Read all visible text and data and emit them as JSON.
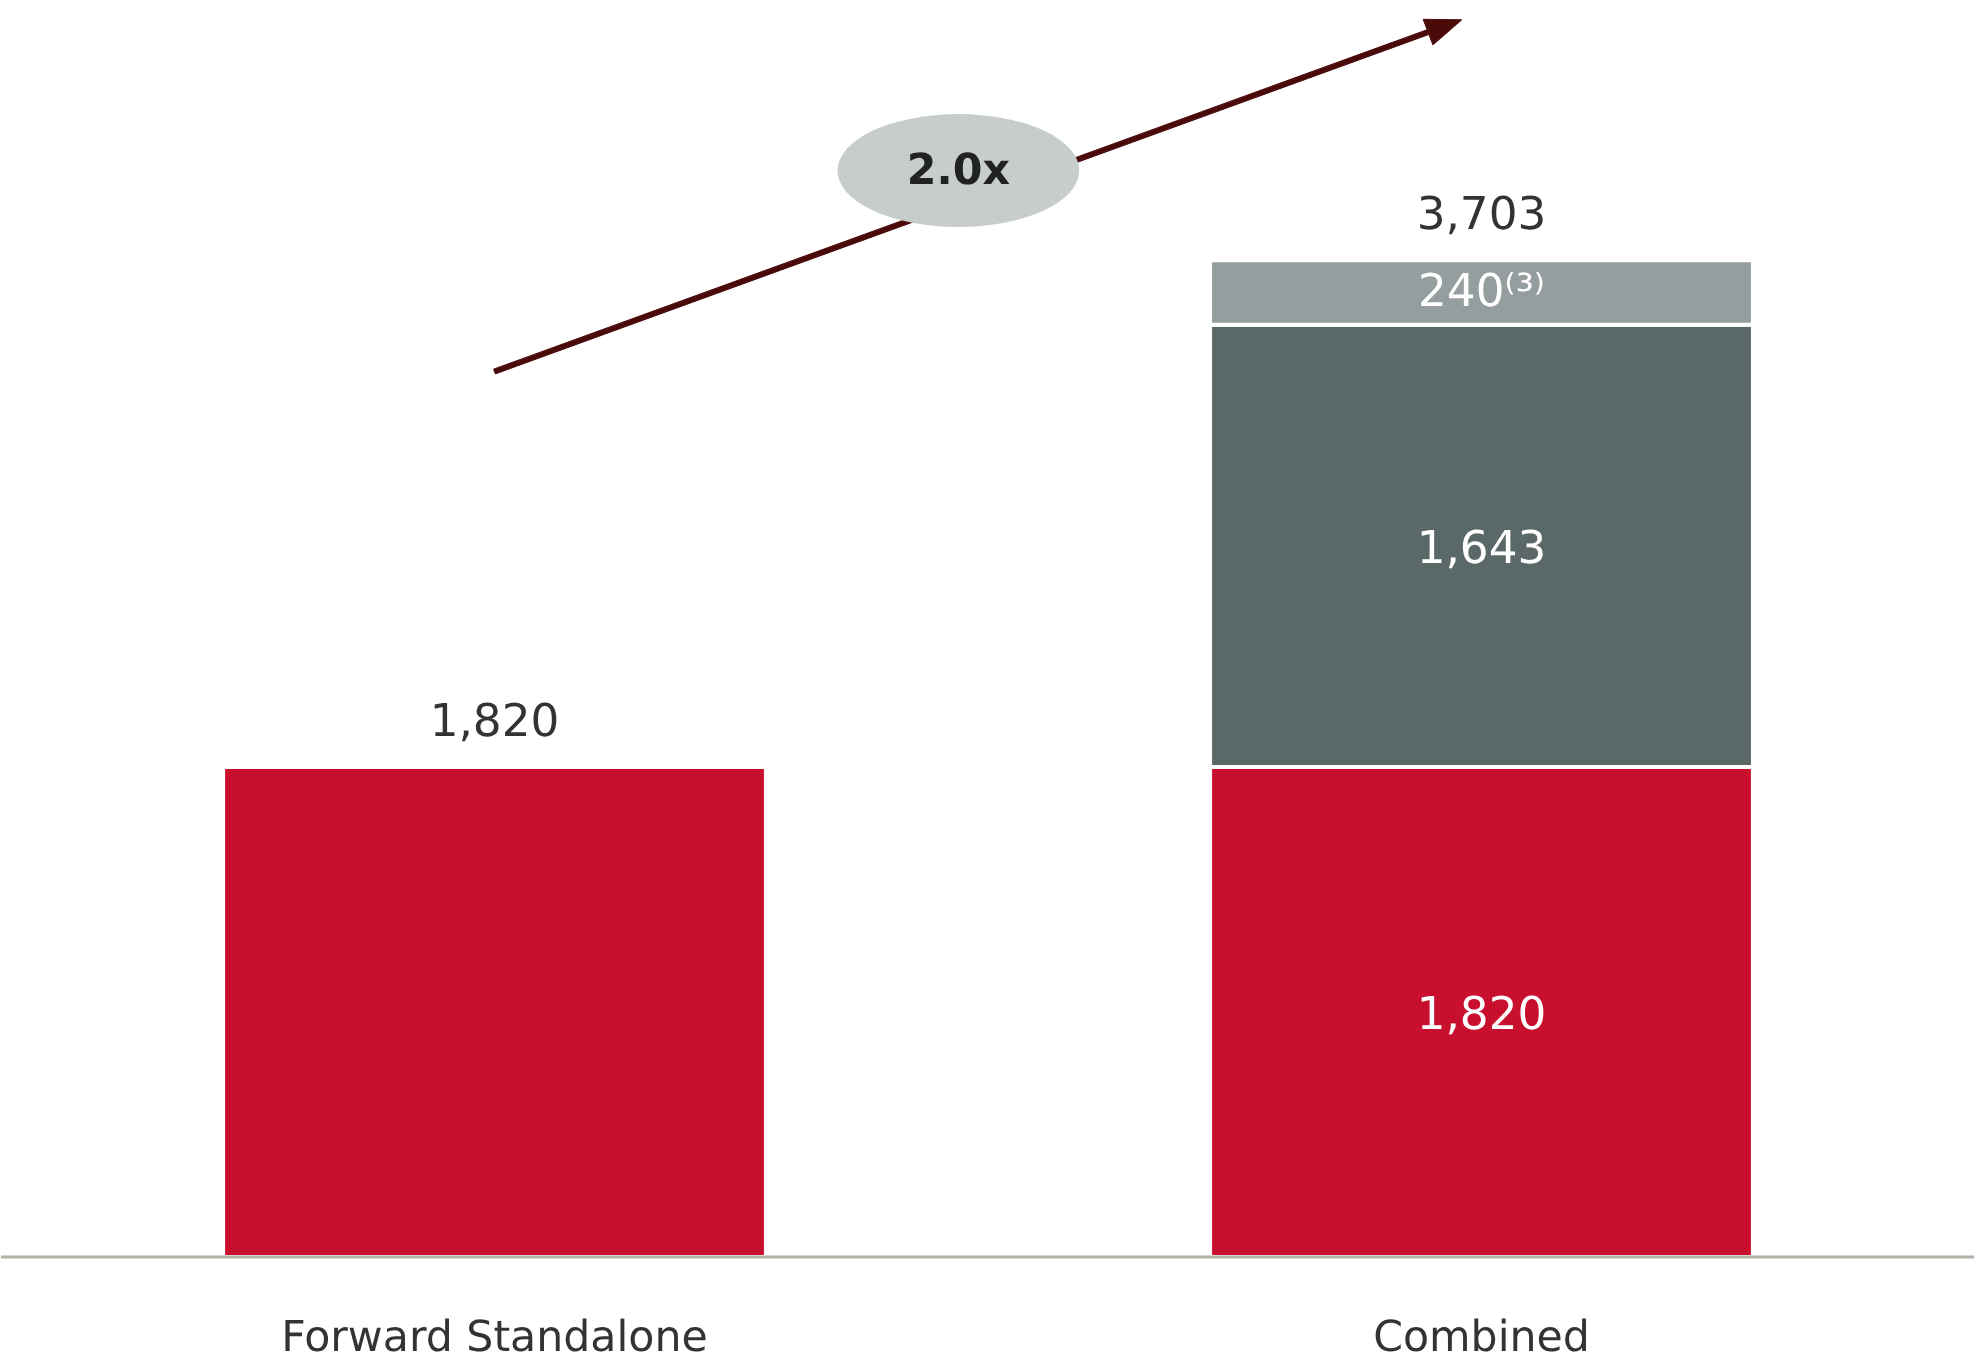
{
  "chart_data": {
    "type": "bar",
    "stacked": true,
    "categories": [
      "Forward Standalone",
      "Combined"
    ],
    "series": [
      {
        "color": "#c8102e",
        "values": [
          1820,
          1820
        ],
        "value_labels": [
          null,
          "1,820"
        ]
      },
      {
        "color": "#5b6868",
        "values": [
          null,
          1643
        ],
        "value_labels": [
          null,
          "1,643"
        ]
      },
      {
        "color": "#949e9e",
        "values": [
          null,
          240
        ],
        "value_labels": [
          null,
          "240⁽³⁾"
        ]
      }
    ],
    "totals": [
      "1,820",
      "3,703"
    ],
    "annotations": [
      "2.0x"
    ],
    "grid": false
  }
}
